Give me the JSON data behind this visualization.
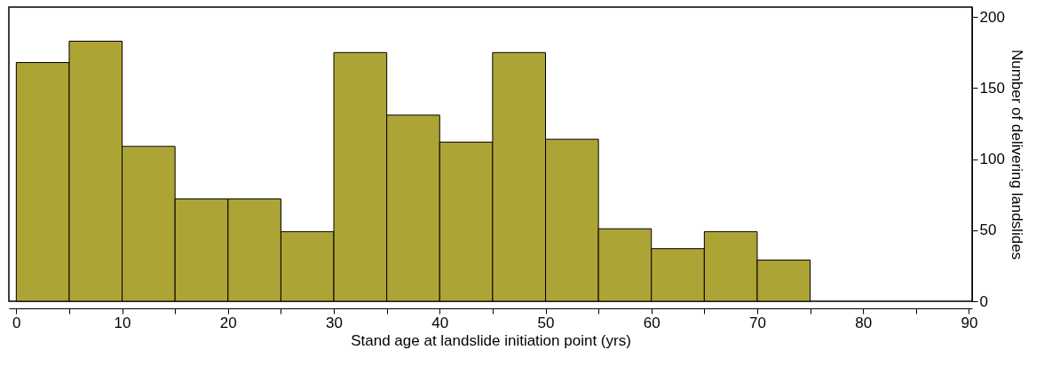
{
  "chart_data": {
    "type": "histogram",
    "xlabel": "Stand age at landslide initiation point  (yrs)",
    "ylabel": "Number of delivering landslides",
    "bins": [
      0,
      5,
      10,
      15,
      20,
      25,
      30,
      35,
      40,
      45,
      50,
      55,
      60,
      65,
      70,
      75
    ],
    "values": [
      168,
      183,
      109,
      72,
      72,
      49,
      175,
      131,
      112,
      175,
      114,
      51,
      37,
      49,
      29
    ],
    "color": "#ada436",
    "xlim": [
      -0.7,
      90.3
    ],
    "xticks": [
      0,
      {
        "value": 5,
        "label": null
      },
      10,
      {
        "value": 15,
        "label": null
      },
      20,
      {
        "value": 25,
        "label": null
      },
      30,
      {
        "value": 35,
        "label": null
      },
      40,
      {
        "value": 45,
        "label": null
      },
      50,
      {
        "value": 55,
        "label": null
      },
      60,
      {
        "value": 65,
        "label": null
      },
      70,
      {
        "value": 75,
        "label": null
      },
      80,
      {
        "value": 85,
        "label": null
      },
      90
    ],
    "ylim": [
      0,
      207
    ],
    "yticks": [
      0,
      50,
      100,
      150,
      200
    ],
    "grid": false
  }
}
